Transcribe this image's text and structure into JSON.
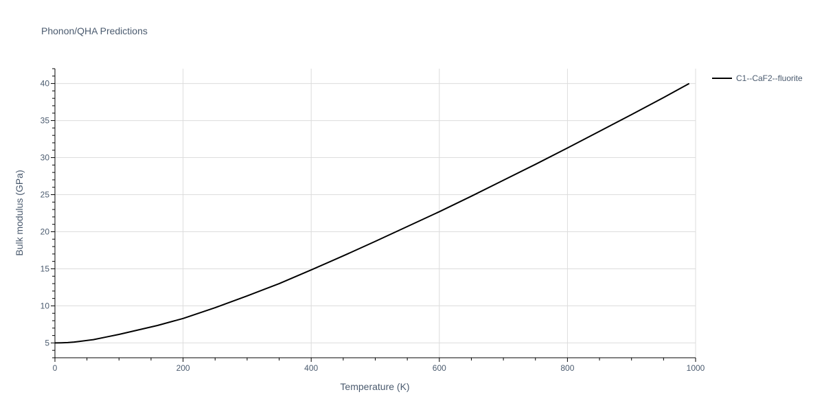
{
  "chart_data": {
    "type": "line",
    "title": "Phonon/QHA Predictions",
    "xlabel": "Temperature (K)",
    "ylabel": "Bulk modulus (GPa)",
    "xlim": [
      0,
      1000
    ],
    "ylim": [
      3,
      42
    ],
    "x_ticks": [
      0,
      200,
      400,
      600,
      800,
      1000
    ],
    "y_ticks": [
      5,
      10,
      15,
      20,
      25,
      30,
      35,
      40
    ],
    "grid": true,
    "legend_position": "top-right outside",
    "series": [
      {
        "name": "C1--CaF2--fluorite",
        "color": "#000000",
        "x": [
          0,
          10,
          20,
          30,
          40,
          60,
          80,
          100,
          130,
          160,
          200,
          250,
          300,
          350,
          400,
          450,
          500,
          550,
          600,
          650,
          700,
          750,
          800,
          850,
          900,
          950,
          990
        ],
        "y": [
          5.0,
          5.02,
          5.05,
          5.12,
          5.22,
          5.45,
          5.8,
          6.15,
          6.75,
          7.35,
          8.3,
          9.75,
          11.35,
          13.0,
          14.85,
          16.75,
          18.7,
          20.7,
          22.7,
          24.8,
          26.95,
          29.1,
          31.3,
          33.55,
          35.8,
          38.1,
          40.0
        ]
      }
    ]
  }
}
